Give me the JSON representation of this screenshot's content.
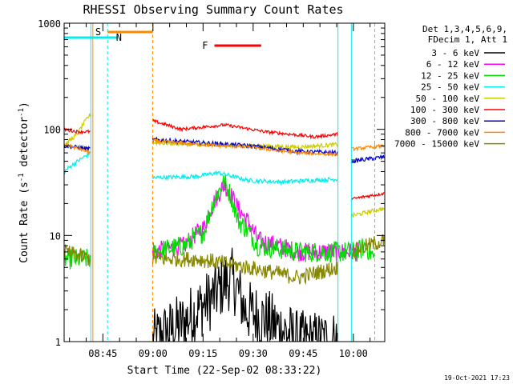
{
  "chart_data": {
    "type": "line",
    "title": "RHESSI Observing Summary Count Rates",
    "xlabel": "Start Time (22-Sep-02 08:33:22)",
    "ylabel": "Count Rate (s",
    "ylabel_sup": "-1",
    "ylabel_mid": " detector",
    "ylabel_end": ")",
    "yscale": "log",
    "ylim": [
      1,
      1000
    ],
    "xlim_minutes": [
      0,
      96
    ],
    "x_ticks": [
      {
        "label": "08:45",
        "minute": 11.6
      },
      {
        "label": "09:00",
        "minute": 26.6
      },
      {
        "label": "09:15",
        "minute": 41.6
      },
      {
        "label": "09:30",
        "minute": 56.6
      },
      {
        "label": "09:45",
        "minute": 71.6
      },
      {
        "label": "10:00",
        "minute": 86.6
      }
    ],
    "y_ticks": [
      {
        "label": "1000",
        "value": 1000
      },
      {
        "label": "100",
        "value": 100
      },
      {
        "label": "10",
        "value": 10
      },
      {
        "label": "1",
        "value": 1
      }
    ],
    "legend_header": [
      "Det 1,3,4,5,6,9,",
      "FDecim 1, Att 1"
    ],
    "legend_placement": "right",
    "series": [
      {
        "name": "3 - 6 keV",
        "color": "#000000"
      },
      {
        "name": "6 - 12 keV",
        "color": "#ff00ff"
      },
      {
        "name": "12 - 25 keV",
        "color": "#00dd00"
      },
      {
        "name": "25 - 50 keV",
        "color": "#00eeee"
      },
      {
        "name": "50 - 100 keV",
        "color": "#cccc00"
      },
      {
        "name": "100 - 300 keV",
        "color": "#ff0000"
      },
      {
        "name": "300 - 800 keV",
        "color": "#0000cc"
      },
      {
        "name": "800 - 7000 keV",
        "color": "#ff8800"
      },
      {
        "name": "7000 - 15000 keV",
        "color": "#888800"
      }
    ],
    "flags": [
      {
        "label": "S",
        "color": "#ff8800",
        "start_min": 13,
        "end_min": 26.5
      },
      {
        "label": "N",
        "color": "#00eeee",
        "start_min": 0,
        "end_min": 16
      },
      {
        "label": "F",
        "color": "#ff0000",
        "start_min": 45,
        "end_min": 59
      }
    ],
    "footer_date": "19-Oct-2021 17:23"
  }
}
